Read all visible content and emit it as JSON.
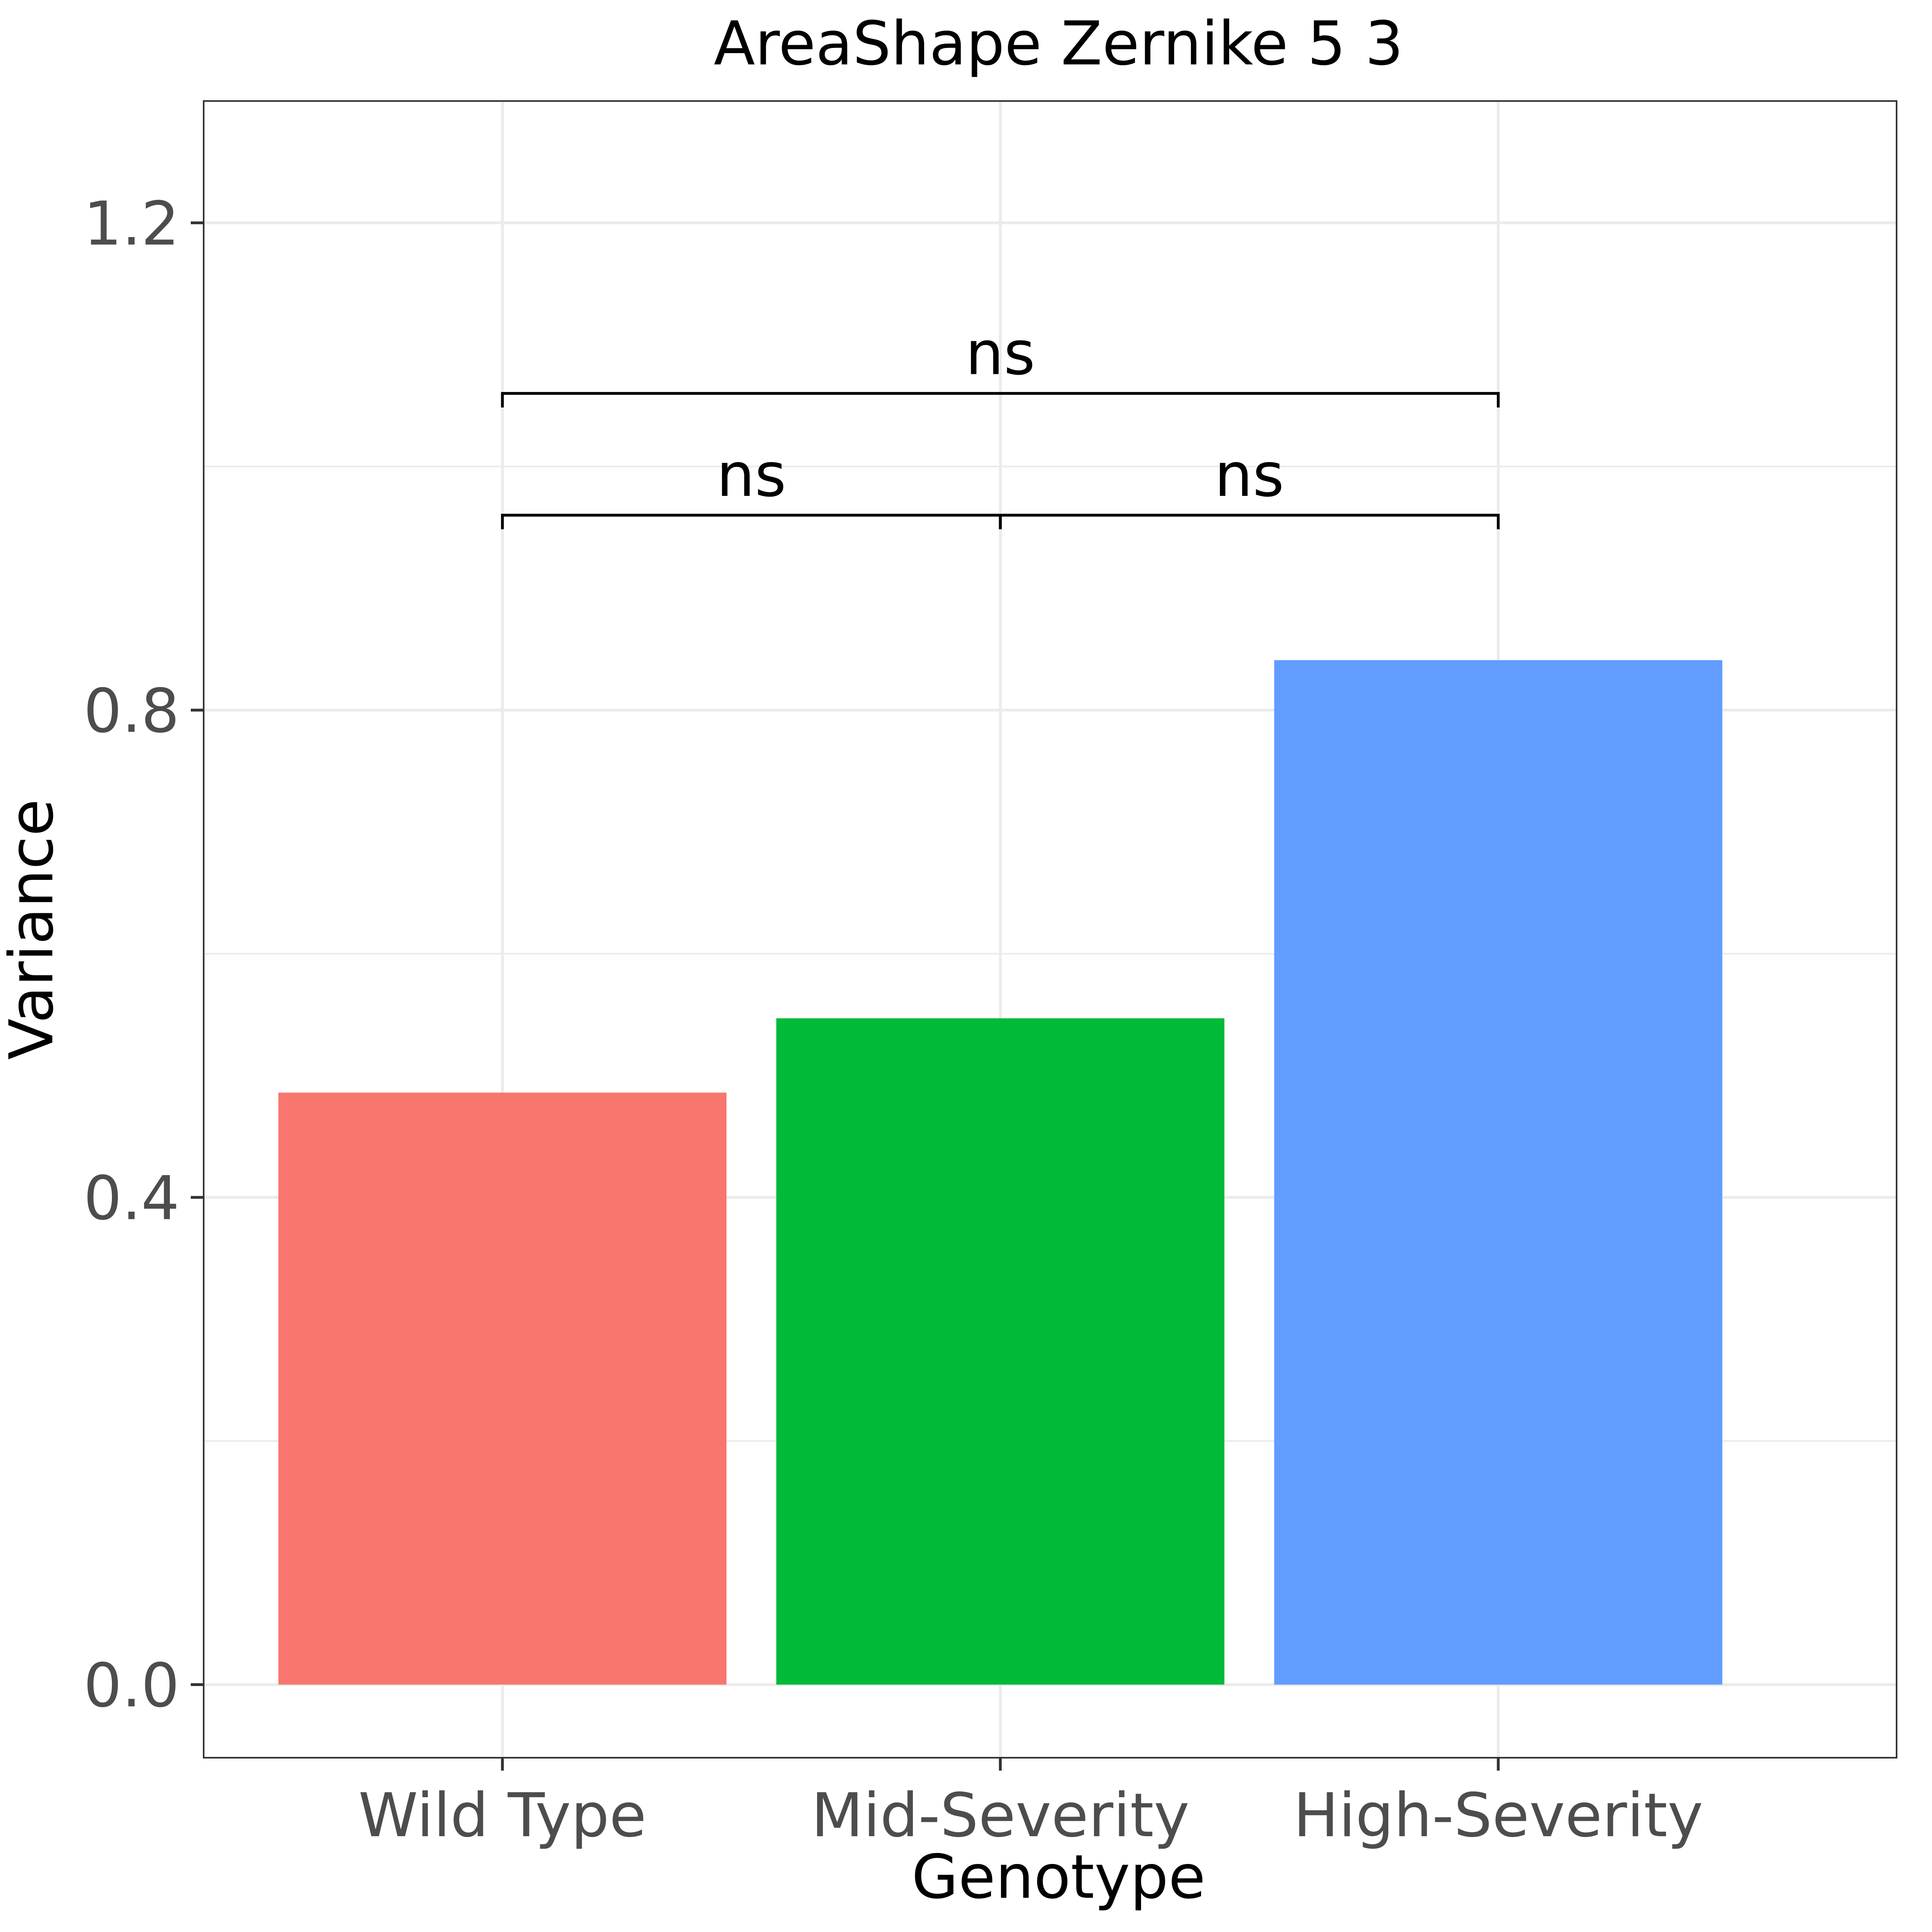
{
  "chart_data": {
    "type": "bar",
    "title": "AreaShape Zernike 5 3",
    "xlabel": "Genotype",
    "ylabel": "Variance",
    "categories": [
      "Wild Type",
      "Mid-Severity",
      "High-Severity"
    ],
    "values": [
      0.486,
      0.547,
      0.841
    ],
    "colors": [
      "#F8766D",
      "#00BA38",
      "#619CFF"
    ],
    "ylim": [
      -0.06,
      1.3
    ],
    "yticks": [
      0.0,
      0.4,
      0.8,
      1.2
    ],
    "ytick_labels": [
      "0.0",
      "0.4",
      "0.8",
      "1.2"
    ],
    "grid": true,
    "legend": "none",
    "comparisons": [
      {
        "from": 0,
        "to": 1,
        "y": 0.96,
        "label": "ns"
      },
      {
        "from": 1,
        "to": 2,
        "y": 0.96,
        "label": "ns"
      },
      {
        "from": 0,
        "to": 2,
        "y": 1.06,
        "label": "ns"
      }
    ]
  }
}
